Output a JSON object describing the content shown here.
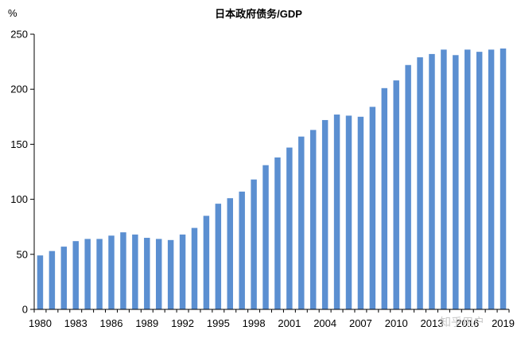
{
  "chart_data": {
    "type": "bar",
    "title": "日本政府债务/GDP",
    "ylabel": "%",
    "xlabel": "",
    "ylim": [
      0,
      250
    ],
    "yticks": [
      0,
      50,
      100,
      150,
      200,
      250
    ],
    "categories": [
      "1980",
      "1981",
      "1982",
      "1983",
      "1984",
      "1985",
      "1986",
      "1987",
      "1988",
      "1989",
      "1990",
      "1991",
      "1992",
      "1993",
      "1994",
      "1995",
      "1996",
      "1997",
      "1998",
      "1999",
      "2000",
      "2001",
      "2002",
      "2003",
      "2004",
      "2005",
      "2006",
      "2007",
      "2008",
      "2009",
      "2010",
      "2011",
      "2012",
      "2013",
      "2014",
      "2015",
      "2016",
      "2017",
      "2018",
      "2019"
    ],
    "xtick_labels": [
      "1980",
      "1983",
      "1986",
      "1989",
      "1992",
      "1995",
      "1998",
      "2001",
      "2004",
      "2007",
      "2010",
      "2013",
      "2016",
      "2019"
    ],
    "values": [
      49,
      53,
      57,
      62,
      64,
      64,
      67,
      70,
      68,
      65,
      64,
      63,
      68,
      74,
      85,
      96,
      101,
      107,
      118,
      131,
      138,
      147,
      157,
      163,
      172,
      177,
      176,
      175,
      184,
      201,
      208,
      222,
      229,
      232,
      236,
      231,
      236,
      234,
      236,
      237
    ],
    "grid": false,
    "legend": "none",
    "bar_color": "#5b8fd1"
  },
  "watermark": "知乎用户"
}
